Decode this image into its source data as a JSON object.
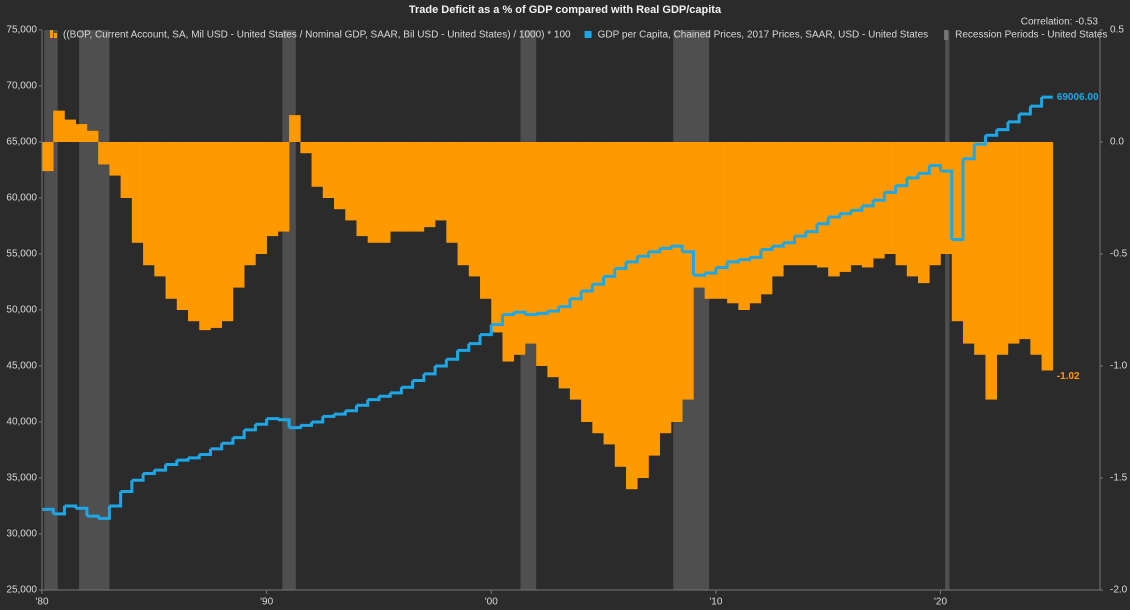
{
  "chart_data": {
    "type": "step-combo",
    "title": "Trade Deficit as a % of GDP compared with Real GDP/capita",
    "annotation": "Correlation: -0.53",
    "xlim": [
      1980,
      2027.1
    ],
    "xticks": [
      {
        "value": 1980,
        "label": "'80"
      },
      {
        "value": 1990,
        "label": "'90"
      },
      {
        "value": 2000,
        "label": "'00"
      },
      {
        "value": 2010,
        "label": "'10"
      },
      {
        "value": 2020,
        "label": "'20"
      }
    ],
    "ylim": [
      25000,
      75000
    ],
    "yticks": [
      {
        "value": 75000,
        "label": "75,000"
      },
      {
        "value": 70000,
        "label": "70,000"
      },
      {
        "value": 65000,
        "label": "65,000"
      },
      {
        "value": 60000,
        "label": "60,000"
      },
      {
        "value": 55000,
        "label": "55,000"
      },
      {
        "value": 50000,
        "label": "50,000"
      },
      {
        "value": 45000,
        "label": "45,000"
      },
      {
        "value": 40000,
        "label": "40,000"
      },
      {
        "value": 35000,
        "label": "35,000"
      },
      {
        "value": 30000,
        "label": "30,000"
      },
      {
        "value": 25000,
        "label": "25,000"
      }
    ],
    "y2lim": [
      -2.0,
      0.5
    ],
    "y2ticks": [
      0.5,
      {
        "value": 0,
        "label": "0.0"
      },
      -0.5,
      {
        "value": -1,
        "label": "-1.0"
      },
      -1.5,
      {
        "value": -2,
        "label": "-2.0"
      }
    ],
    "x": [
      1980,
      1980.5,
      1981,
      1981.5,
      1982,
      1982.5,
      1983,
      1983.5,
      1984,
      1984.5,
      1985,
      1985.5,
      1986,
      1986.5,
      1987,
      1987.5,
      1988,
      1988.5,
      1989,
      1989.5,
      1990,
      1990.5,
      1991,
      1991.5,
      1992,
      1992.5,
      1993,
      1993.5,
      1994,
      1994.5,
      1995,
      1995.5,
      1996,
      1996.5,
      1997,
      1997.5,
      1998,
      1998.5,
      1999,
      1999.5,
      2000,
      2000.5,
      2001,
      2001.5,
      2002,
      2002.5,
      2003,
      2003.5,
      2004,
      2004.5,
      2005,
      2005.5,
      2006,
      2006.5,
      2007,
      2007.5,
      2008,
      2008.5,
      2009,
      2009.5,
      2010,
      2010.5,
      2011,
      2011.5,
      2012,
      2012.5,
      2013,
      2013.5,
      2014,
      2014.5,
      2015,
      2015.5,
      2016,
      2016.5,
      2017,
      2017.5,
      2018,
      2018.5,
      2019,
      2019.5,
      2020,
      2020.5,
      2021,
      2021.5,
      2022,
      2022.5,
      2023,
      2023.5,
      2024,
      2024.5
    ],
    "series": [
      {
        "name": "((BOP, Current Account, SA, Mil USD - United States / Nominal GDP, SAAR, Bil USD - United States) / 1000) * 100",
        "color": "#ff9900",
        "axis": "y2",
        "kind": "bar",
        "values": [
          -0.13,
          0.14,
          0.1,
          0.08,
          0.05,
          -0.1,
          -0.15,
          -0.25,
          -0.45,
          -0.55,
          -0.6,
          -0.7,
          -0.75,
          -0.8,
          -0.84,
          -0.83,
          -0.8,
          -0.65,
          -0.55,
          -0.5,
          -0.42,
          -0.4,
          0.12,
          -0.05,
          -0.2,
          -0.25,
          -0.3,
          -0.35,
          -0.42,
          -0.45,
          -0.45,
          -0.4,
          -0.4,
          -0.4,
          -0.38,
          -0.35,
          -0.45,
          -0.55,
          -0.6,
          -0.7,
          -0.85,
          -0.98,
          -0.95,
          -0.9,
          -1.0,
          -1.05,
          -1.1,
          -1.15,
          -1.25,
          -1.3,
          -1.35,
          -1.45,
          -1.55,
          -1.5,
          -1.4,
          -1.3,
          -1.25,
          -1.15,
          -0.65,
          -0.7,
          -0.7,
          -0.72,
          -0.75,
          -0.72,
          -0.68,
          -0.6,
          -0.55,
          -0.55,
          -0.55,
          -0.56,
          -0.6,
          -0.58,
          -0.55,
          -0.56,
          -0.52,
          -0.5,
          -0.55,
          -0.6,
          -0.63,
          -0.55,
          -0.5,
          -0.8,
          -0.9,
          -0.95,
          -1.15,
          -0.95,
          -0.9,
          -0.88,
          -0.95,
          -1.02
        ]
      },
      {
        "name": "GDP per Capita, Chained Prices, 2017 Prices, SAAR, USD - United States",
        "color": "#1ea7e6",
        "axis": "y",
        "kind": "line",
        "values": [
          32200,
          31800,
          32500,
          32300,
          31600,
          31400,
          32500,
          33800,
          34800,
          35400,
          35700,
          36200,
          36600,
          36800,
          37100,
          37600,
          38100,
          38600,
          39300,
          39800,
          40300,
          40200,
          39500,
          39700,
          40000,
          40500,
          40700,
          41000,
          41500,
          42000,
          42300,
          42600,
          43100,
          43700,
          44300,
          45000,
          45600,
          46400,
          47000,
          47800,
          48700,
          49600,
          49800,
          49600,
          49700,
          49900,
          50300,
          51000,
          51700,
          52300,
          53000,
          53700,
          54300,
          54800,
          55200,
          55500,
          55700,
          55200,
          53100,
          53300,
          53800,
          54300,
          54500,
          54700,
          55400,
          55700,
          56000,
          56600,
          57000,
          57700,
          58300,
          58600,
          58900,
          59300,
          59800,
          60500,
          61100,
          61800,
          62200,
          62900,
          62400,
          56300,
          63500,
          64800,
          65600,
          66100,
          66800,
          67500,
          68200,
          69006
        ],
        "value_labels": [
          null,
          null,
          null,
          null,
          null,
          null,
          null,
          null,
          null,
          null,
          null,
          null,
          null,
          null,
          null,
          null,
          null,
          null,
          null,
          null,
          null,
          null,
          null,
          null,
          null,
          null,
          null,
          null,
          null,
          null,
          null,
          null,
          null,
          null,
          null,
          null,
          null,
          null,
          null,
          null,
          null,
          null,
          null,
          null,
          null,
          null,
          null,
          null,
          null,
          null,
          null,
          null,
          null,
          null,
          null,
          null,
          null,
          null,
          null,
          null,
          null,
          null,
          null,
          null,
          null,
          null,
          null,
          null,
          null,
          null,
          null,
          null,
          null,
          null,
          null,
          null,
          null,
          null,
          null,
          null,
          null,
          null,
          null,
          null,
          null,
          null,
          null,
          null,
          null,
          "69006.00"
        ]
      },
      {
        "name": "Recession Periods - United States",
        "color": "#4f4f4f",
        "kind": "periods",
        "periods": [
          [
            1980.1,
            1980.7
          ],
          [
            1981.65,
            1983.0
          ],
          [
            1990.7,
            1991.3
          ],
          [
            2001.3,
            2002.0
          ],
          [
            2008.1,
            2009.7
          ],
          [
            2020.2,
            2020.4
          ]
        ]
      }
    ]
  }
}
